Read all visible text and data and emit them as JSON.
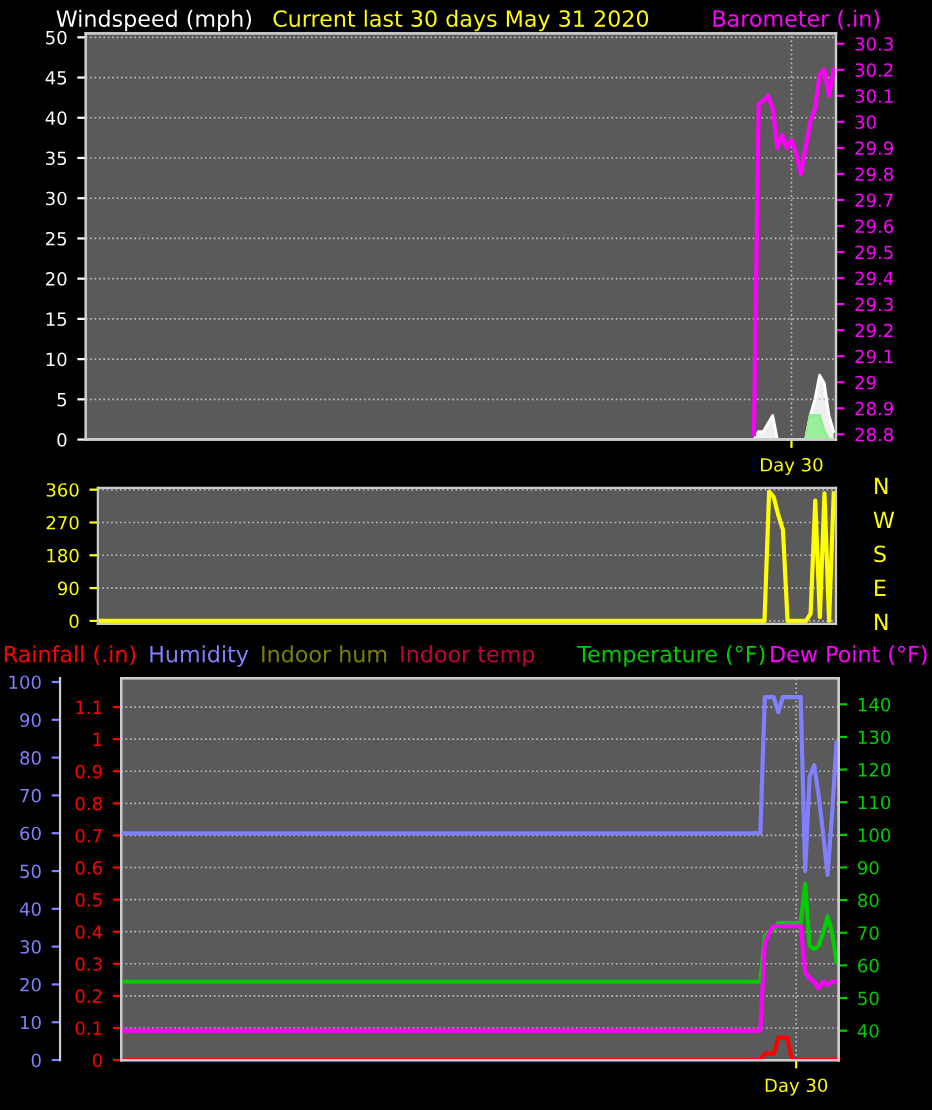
{
  "chart_data": [
    {
      "type": "line",
      "title": "Current last 30 days May 31 2020",
      "ylabel": "Windspeed (mph)",
      "y2label": "Barometer (.in)",
      "categories": [
        null,
        null,
        null,
        null,
        null,
        null,
        null,
        null,
        null,
        null,
        null,
        null,
        null,
        null,
        null,
        null,
        null,
        null,
        null,
        null,
        null,
        null,
        null,
        null,
        null,
        null,
        null,
        null,
        null,
        null,
        null,
        null,
        null,
        null,
        null,
        null,
        null,
        null,
        null,
        null,
        null,
        null,
        null,
        null,
        null,
        null,
        null,
        null,
        null,
        null,
        null,
        null,
        null,
        null,
        null,
        null,
        null,
        null,
        null,
        null,
        null,
        null,
        null,
        null,
        null,
        null,
        null,
        null,
        null,
        null,
        null,
        null,
        null,
        null,
        null,
        null,
        null,
        null,
        null,
        null,
        null,
        null,
        null,
        null,
        null,
        null,
        null,
        null,
        null,
        null,
        null,
        null,
        null,
        null,
        null,
        null,
        null,
        null,
        null,
        null,
        null,
        null,
        null,
        null,
        null,
        null,
        null,
        null,
        null,
        null,
        null,
        null,
        null,
        null,
        null,
        null,
        null,
        null,
        null,
        null,
        null,
        null,
        null,
        null,
        null,
        null,
        null,
        null,
        null,
        null,
        null,
        null,
        null,
        null,
        null,
        null,
        null,
        null,
        null,
        null,
        null,
        null,
        null,
        null,
        null,
        null,
        null,
        null,
        null,
        null,
        "Day 30",
        null,
        null,
        null,
        null,
        null,
        null,
        null,
        null,
        null
      ],
      "ylim": [
        0,
        50.5
      ],
      "yticks": [
        0,
        5,
        10,
        15,
        20,
        25,
        30,
        35,
        40,
        45,
        50
      ],
      "y2lim": [
        28.78,
        30.34
      ],
      "y2ticks": [
        28.8,
        28.9,
        29,
        29.1,
        29.2,
        29.3,
        29.4,
        29.5,
        29.6,
        29.7,
        29.8,
        29.9,
        30,
        30.1,
        30.2,
        30.3
      ],
      "grid": true,
      "series": [
        {
          "type": "area",
          "color": "#ffffff",
          "values": [
            0,
            0,
            0,
            0,
            0,
            0,
            0,
            0,
            0,
            0,
            0,
            0,
            0,
            0,
            0,
            0,
            0,
            0,
            0,
            0,
            0,
            0,
            0,
            0,
            0,
            0,
            0,
            0,
            0,
            0,
            0,
            0,
            0,
            0,
            0,
            0,
            0,
            0,
            0,
            0,
            0,
            0,
            0,
            0,
            0,
            0,
            0,
            0,
            0,
            0,
            0,
            0,
            0,
            0,
            0,
            0,
            0,
            0,
            0,
            0,
            0,
            0,
            0,
            0,
            0,
            0,
            0,
            0,
            0,
            0,
            0,
            0,
            0,
            0,
            0,
            0,
            0,
            0,
            0,
            0,
            0,
            0,
            0,
            0,
            0,
            0,
            0,
            0,
            0,
            0,
            0,
            0,
            0,
            0,
            0,
            0,
            0,
            0,
            0,
            0,
            0,
            0,
            0,
            0,
            0,
            0,
            0,
            0,
            0,
            0,
            0,
            0,
            0,
            0,
            0,
            0,
            0,
            0,
            0,
            0,
            0,
            0,
            0,
            0,
            0,
            0,
            0,
            0,
            0,
            0,
            0,
            0,
            0,
            0,
            0,
            0,
            0,
            0,
            0,
            0,
            0,
            0,
            0,
            1,
            1,
            2,
            3,
            0,
            0,
            0,
            0,
            0,
            0,
            0,
            3,
            5,
            8,
            7,
            3,
            1
          ]
        },
        {
          "type": "area",
          "color": "#90ee90",
          "values": [
            0,
            0,
            0,
            0,
            0,
            0,
            0,
            0,
            0,
            0,
            0,
            0,
            0,
            0,
            0,
            0,
            0,
            0,
            0,
            0,
            0,
            0,
            0,
            0,
            0,
            0,
            0,
            0,
            0,
            0,
            0,
            0,
            0,
            0,
            0,
            0,
            0,
            0,
            0,
            0,
            0,
            0,
            0,
            0,
            0,
            0,
            0,
            0,
            0,
            0,
            0,
            0,
            0,
            0,
            0,
            0,
            0,
            0,
            0,
            0,
            0,
            0,
            0,
            0,
            0,
            0,
            0,
            0,
            0,
            0,
            0,
            0,
            0,
            0,
            0,
            0,
            0,
            0,
            0,
            0,
            0,
            0,
            0,
            0,
            0,
            0,
            0,
            0,
            0,
            0,
            0,
            0,
            0,
            0,
            0,
            0,
            0,
            0,
            0,
            0,
            0,
            0,
            0,
            0,
            0,
            0,
            0,
            0,
            0,
            0,
            0,
            0,
            0,
            0,
            0,
            0,
            0,
            0,
            0,
            0,
            0,
            0,
            0,
            0,
            0,
            0,
            0,
            0,
            0,
            0,
            0,
            0,
            0,
            0,
            0,
            0,
            0,
            0,
            0,
            0,
            0,
            0,
            0,
            0,
            0,
            0,
            0,
            0,
            0,
            0,
            0,
            0,
            0,
            0,
            3,
            3,
            3,
            1,
            0,
            0
          ]
        },
        {
          "axis": "y2",
          "color": "#ff00ff",
          "values": [
            null,
            null,
            null,
            null,
            null,
            null,
            null,
            null,
            null,
            null,
            null,
            null,
            null,
            null,
            null,
            null,
            null,
            null,
            null,
            null,
            null,
            null,
            null,
            null,
            null,
            null,
            null,
            null,
            null,
            null,
            null,
            null,
            null,
            null,
            null,
            null,
            null,
            null,
            null,
            null,
            null,
            null,
            null,
            null,
            null,
            null,
            null,
            null,
            null,
            null,
            null,
            null,
            null,
            null,
            null,
            null,
            null,
            null,
            null,
            null,
            null,
            null,
            null,
            null,
            null,
            null,
            null,
            null,
            null,
            null,
            null,
            null,
            null,
            null,
            null,
            null,
            null,
            null,
            null,
            null,
            null,
            null,
            null,
            null,
            null,
            null,
            null,
            null,
            null,
            null,
            null,
            null,
            null,
            null,
            null,
            null,
            null,
            null,
            null,
            null,
            null,
            null,
            null,
            null,
            null,
            null,
            null,
            null,
            null,
            null,
            null,
            null,
            null,
            null,
            null,
            null,
            null,
            null,
            null,
            null,
            null,
            null,
            null,
            null,
            null,
            null,
            null,
            null,
            null,
            null,
            null,
            null,
            null,
            null,
            null,
            null,
            null,
            null,
            null,
            null,
            null,
            null,
            28.8,
            30.07,
            30.08,
            30.1,
            30.05,
            29.9,
            29.95,
            29.9,
            29.93,
            29.88,
            29.8,
            29.9,
            30.0,
            30.05,
            30.18,
            30.2,
            30.1,
            30.2
          ]
        }
      ]
    },
    {
      "type": "line",
      "categories": [
        null,
        null,
        null,
        null,
        null,
        null,
        null,
        null,
        null,
        null,
        null,
        null,
        null,
        null,
        null,
        null,
        null,
        null,
        null,
        null,
        null,
        null,
        null,
        null,
        null,
        null,
        null,
        null,
        null,
        null,
        null,
        null,
        null,
        null,
        null,
        null,
        null,
        null,
        null,
        null,
        null,
        null,
        null,
        null,
        null,
        null,
        null,
        null,
        null,
        null,
        null,
        null,
        null,
        null,
        null,
        null,
        null,
        null,
        null,
        null,
        null,
        null,
        null,
        null,
        null,
        null,
        null,
        null,
        null,
        null,
        null,
        null,
        null,
        null,
        null,
        null,
        null,
        null,
        null,
        null,
        null,
        null,
        null,
        null,
        null,
        null,
        null,
        null,
        null,
        null,
        null,
        null,
        null,
        null,
        null,
        null,
        null,
        null,
        null,
        null,
        null,
        null,
        null,
        null,
        null,
        null,
        null,
        null,
        null,
        null,
        null,
        null,
        null,
        null,
        null,
        null,
        null,
        null,
        null,
        null,
        null,
        null,
        null,
        null,
        null,
        null,
        null,
        null,
        null,
        null,
        null,
        null,
        null,
        null,
        null,
        null,
        null,
        null,
        null,
        null,
        null,
        null,
        null,
        null,
        null,
        null,
        null,
        null,
        null,
        null,
        null,
        null,
        null,
        null,
        null,
        null,
        null,
        null,
        null,
        null
      ],
      "ylim": [
        -8,
        365
      ],
      "yticks": [
        0,
        90,
        180,
        270,
        360
      ],
      "annotations": [
        "N",
        "W",
        "S",
        "E",
        "N"
      ],
      "grid": "y",
      "series": [
        {
          "color": "#ffff00",
          "values": [
            0,
            0,
            0,
            0,
            0,
            0,
            0,
            0,
            0,
            0,
            0,
            0,
            0,
            0,
            0,
            0,
            0,
            0,
            0,
            0,
            0,
            0,
            0,
            0,
            0,
            0,
            0,
            0,
            0,
            0,
            0,
            0,
            0,
            0,
            0,
            0,
            0,
            0,
            0,
            0,
            0,
            0,
            0,
            0,
            0,
            0,
            0,
            0,
            0,
            0,
            0,
            0,
            0,
            0,
            0,
            0,
            0,
            0,
            0,
            0,
            0,
            0,
            0,
            0,
            0,
            0,
            0,
            0,
            0,
            0,
            0,
            0,
            0,
            0,
            0,
            0,
            0,
            0,
            0,
            0,
            0,
            0,
            0,
            0,
            0,
            0,
            0,
            0,
            0,
            0,
            0,
            0,
            0,
            0,
            0,
            0,
            0,
            0,
            0,
            0,
            0,
            0,
            0,
            0,
            0,
            0,
            0,
            0,
            0,
            0,
            0,
            0,
            0,
            0,
            0,
            0,
            0,
            0,
            0,
            0,
            0,
            0,
            0,
            0,
            0,
            0,
            0,
            0,
            0,
            0,
            0,
            0,
            0,
            0,
            0,
            0,
            0,
            0,
            0,
            0,
            0,
            0,
            0,
            0,
            0,
            355,
            340,
            290,
            250,
            0,
            0,
            0,
            0,
            0,
            20,
            330,
            10,
            350,
            0,
            350
          ]
        }
      ]
    },
    {
      "type": "line",
      "legend": "top",
      "categories": [
        null,
        null,
        null,
        null,
        null,
        null,
        null,
        null,
        null,
        null,
        null,
        null,
        null,
        null,
        null,
        null,
        null,
        null,
        null,
        null,
        null,
        null,
        null,
        null,
        null,
        null,
        null,
        null,
        null,
        null,
        null,
        null,
        null,
        null,
        null,
        null,
        null,
        null,
        null,
        null,
        null,
        null,
        null,
        null,
        null,
        null,
        null,
        null,
        null,
        null,
        null,
        null,
        null,
        null,
        null,
        null,
        null,
        null,
        null,
        null,
        null,
        null,
        null,
        null,
        null,
        null,
        null,
        null,
        null,
        null,
        null,
        null,
        null,
        null,
        null,
        null,
        null,
        null,
        null,
        null,
        null,
        null,
        null,
        null,
        null,
        null,
        null,
        null,
        null,
        null,
        null,
        null,
        null,
        null,
        null,
        null,
        null,
        null,
        null,
        null,
        null,
        null,
        null,
        null,
        null,
        null,
        null,
        null,
        null,
        null,
        null,
        null,
        null,
        null,
        null,
        null,
        null,
        null,
        null,
        null,
        null,
        null,
        null,
        null,
        null,
        null,
        null,
        null,
        null,
        null,
        null,
        null,
        null,
        null,
        null,
        null,
        null,
        null,
        null,
        null,
        null,
        null,
        null,
        null,
        null,
        null,
        null,
        null,
        null,
        null,
        "Day 30",
        null,
        null,
        null,
        null,
        null,
        null,
        null,
        null,
        null
      ],
      "ylim": [
        0,
        1.19
      ],
      "yticks": [
        0,
        0.1,
        0.2,
        0.3,
        0.4,
        0.5,
        0.6,
        0.7,
        0.8,
        0.9,
        1,
        1.1
      ],
      "y2lim": [
        31,
        148
      ],
      "y2ticks": [
        40,
        50,
        60,
        70,
        80,
        90,
        100,
        110,
        120,
        130,
        140
      ],
      "y3lim": [
        0,
        101
      ],
      "y3ticks": [
        0,
        10,
        20,
        30,
        40,
        50,
        60,
        70,
        80,
        90,
        100
      ],
      "grid": true,
      "series": [
        {
          "name": "Rainfall (.in)",
          "axis": "y",
          "color": "#ff0000",
          "values": [
            0,
            0,
            0,
            0,
            0,
            0,
            0,
            0,
            0,
            0,
            0,
            0,
            0,
            0,
            0,
            0,
            0,
            0,
            0,
            0,
            0,
            0,
            0,
            0,
            0,
            0,
            0,
            0,
            0,
            0,
            0,
            0,
            0,
            0,
            0,
            0,
            0,
            0,
            0,
            0,
            0,
            0,
            0,
            0,
            0,
            0,
            0,
            0,
            0,
            0,
            0,
            0,
            0,
            0,
            0,
            0,
            0,
            0,
            0,
            0,
            0,
            0,
            0,
            0,
            0,
            0,
            0,
            0,
            0,
            0,
            0,
            0,
            0,
            0,
            0,
            0,
            0,
            0,
            0,
            0,
            0,
            0,
            0,
            0,
            0,
            0,
            0,
            0,
            0,
            0,
            0,
            0,
            0,
            0,
            0,
            0,
            0,
            0,
            0,
            0,
            0,
            0,
            0,
            0,
            0,
            0,
            0,
            0,
            0,
            0,
            0,
            0,
            0,
            0,
            0,
            0,
            0,
            0,
            0,
            0,
            0,
            0,
            0,
            0,
            0,
            0,
            0,
            0,
            0,
            0,
            0,
            0,
            0,
            0,
            0,
            0,
            0,
            0,
            0,
            0,
            0,
            0,
            0,
            0.02,
            0.02,
            0.02,
            0.07,
            0.07,
            0.07,
            0,
            0,
            0,
            0,
            0,
            0,
            0,
            0,
            0,
            0,
            0
          ]
        },
        {
          "name": "Humidity",
          "axis": "y3",
          "color": "#8080ff",
          "values": [
            60,
            60,
            60,
            60,
            60,
            60,
            60,
            60,
            60,
            60,
            60,
            60,
            60,
            60,
            60,
            60,
            60,
            60,
            60,
            60,
            60,
            60,
            60,
            60,
            60,
            60,
            60,
            60,
            60,
            60,
            60,
            60,
            60,
            60,
            60,
            60,
            60,
            60,
            60,
            60,
            60,
            60,
            60,
            60,
            60,
            60,
            60,
            60,
            60,
            60,
            60,
            60,
            60,
            60,
            60,
            60,
            60,
            60,
            60,
            60,
            60,
            60,
            60,
            60,
            60,
            60,
            60,
            60,
            60,
            60,
            60,
            60,
            60,
            60,
            60,
            60,
            60,
            60,
            60,
            60,
            60,
            60,
            60,
            60,
            60,
            60,
            60,
            60,
            60,
            60,
            60,
            60,
            60,
            60,
            60,
            60,
            60,
            60,
            60,
            60,
            60,
            60,
            60,
            60,
            60,
            60,
            60,
            60,
            60,
            60,
            60,
            60,
            60,
            60,
            60,
            60,
            60,
            60,
            60,
            60,
            60,
            60,
            60,
            60,
            60,
            60,
            60,
            60,
            60,
            60,
            60,
            60,
            60,
            60,
            60,
            60,
            60,
            60,
            60,
            60,
            60,
            60,
            60,
            96,
            96,
            96,
            92,
            96,
            96,
            96,
            96,
            96,
            50,
            75,
            78,
            70,
            60,
            49,
            65,
            84
          ]
        },
        {
          "name": "Indoor hum",
          "axis": "y3",
          "color": "#808000",
          "values": [
            null,
            null,
            null,
            null,
            null,
            null,
            null,
            null,
            null,
            null,
            null,
            null,
            null,
            null,
            null,
            null,
            null,
            null,
            null,
            null,
            null,
            null,
            null,
            null,
            null,
            null,
            null,
            null,
            null,
            null,
            null,
            null,
            null,
            null,
            null,
            null,
            null,
            null,
            null,
            null,
            null,
            null,
            null,
            null,
            null,
            null,
            null,
            null,
            null,
            null,
            null,
            null,
            null,
            null,
            null,
            null,
            null,
            null,
            null,
            null,
            null,
            null,
            null,
            null,
            null,
            null,
            null,
            null,
            null,
            null,
            null,
            null,
            null,
            null,
            null,
            null,
            null,
            null,
            null,
            null,
            null,
            null,
            null,
            null,
            null,
            null,
            null,
            null,
            null,
            null,
            null,
            null,
            null,
            null,
            null,
            null,
            null,
            null,
            null,
            null,
            null,
            null,
            null,
            null,
            null,
            null,
            null,
            null,
            null,
            null,
            null,
            null,
            null,
            null,
            null,
            null,
            null,
            null,
            null,
            null,
            null,
            null,
            null,
            null,
            null,
            null,
            null,
            null,
            null,
            null,
            null,
            null,
            null,
            null,
            null,
            null,
            null,
            null,
            null,
            null,
            null,
            null,
            null,
            null,
            null,
            null,
            null,
            null,
            null,
            null,
            null,
            null,
            null,
            null,
            null,
            null,
            null,
            null,
            null,
            null
          ]
        },
        {
          "name": "Indoor temp",
          "axis": "y",
          "color": "#c00040",
          "values": [
            null,
            null,
            null,
            null,
            null,
            null,
            null,
            null,
            null,
            null,
            null,
            null,
            null,
            null,
            null,
            null,
            null,
            null,
            null,
            null,
            null,
            null,
            null,
            null,
            null,
            null,
            null,
            null,
            null,
            null,
            null,
            null,
            null,
            null,
            null,
            null,
            null,
            null,
            null,
            null,
            null,
            null,
            null,
            null,
            null,
            null,
            null,
            null,
            null,
            null,
            null,
            null,
            null,
            null,
            null,
            null,
            null,
            null,
            null,
            null,
            null,
            null,
            null,
            null,
            null,
            null,
            null,
            null,
            null,
            null,
            null,
            null,
            null,
            null,
            null,
            null,
            null,
            null,
            null,
            null,
            null,
            null,
            null,
            null,
            null,
            null,
            null,
            null,
            null,
            null,
            null,
            null,
            null,
            null,
            null,
            null,
            null,
            null,
            null,
            null,
            null,
            null,
            null,
            null,
            null,
            null,
            null,
            null,
            null,
            null,
            null,
            null,
            null,
            null,
            null,
            null,
            null,
            null,
            null,
            null,
            null,
            null,
            null,
            null,
            null,
            null,
            null,
            null,
            null,
            null,
            null,
            null,
            null,
            null,
            null,
            null,
            null,
            null,
            null,
            null,
            null,
            null,
            null,
            null,
            null,
            null,
            null,
            null,
            null,
            null,
            null,
            null,
            null,
            null,
            null,
            null,
            null,
            null,
            null,
            null
          ]
        },
        {
          "name": "Temperature (°F)",
          "axis": "y2",
          "color": "#00cc00",
          "values": [
            55,
            55,
            55,
            55,
            55,
            55,
            55,
            55,
            55,
            55,
            55,
            55,
            55,
            55,
            55,
            55,
            55,
            55,
            55,
            55,
            55,
            55,
            55,
            55,
            55,
            55,
            55,
            55,
            55,
            55,
            55,
            55,
            55,
            55,
            55,
            55,
            55,
            55,
            55,
            55,
            55,
            55,
            55,
            55,
            55,
            55,
            55,
            55,
            55,
            55,
            55,
            55,
            55,
            55,
            55,
            55,
            55,
            55,
            55,
            55,
            55,
            55,
            55,
            55,
            55,
            55,
            55,
            55,
            55,
            55,
            55,
            55,
            55,
            55,
            55,
            55,
            55,
            55,
            55,
            55,
            55,
            55,
            55,
            55,
            55,
            55,
            55,
            55,
            55,
            55,
            55,
            55,
            55,
            55,
            55,
            55,
            55,
            55,
            55,
            55,
            55,
            55,
            55,
            55,
            55,
            55,
            55,
            55,
            55,
            55,
            55,
            55,
            55,
            55,
            55,
            55,
            55,
            55,
            55,
            55,
            55,
            55,
            55,
            55,
            55,
            55,
            55,
            55,
            55,
            55,
            55,
            55,
            55,
            55,
            55,
            55,
            55,
            55,
            55,
            55,
            55,
            55,
            55,
            69,
            70,
            71,
            73,
            73,
            73,
            73,
            73,
            73,
            85,
            66,
            65,
            66,
            70,
            75,
            70,
            61
          ]
        },
        {
          "name": "Dew Point (°F)",
          "axis": "y2",
          "color": "#ff00ff",
          "values": [
            40,
            40,
            40,
            40,
            40,
            40,
            40,
            40,
            40,
            40,
            40,
            40,
            40,
            40,
            40,
            40,
            40,
            40,
            40,
            40,
            40,
            40,
            40,
            40,
            40,
            40,
            40,
            40,
            40,
            40,
            40,
            40,
            40,
            40,
            40,
            40,
            40,
            40,
            40,
            40,
            40,
            40,
            40,
            40,
            40,
            40,
            40,
            40,
            40,
            40,
            40,
            40,
            40,
            40,
            40,
            40,
            40,
            40,
            40,
            40,
            40,
            40,
            40,
            40,
            40,
            40,
            40,
            40,
            40,
            40,
            40,
            40,
            40,
            40,
            40,
            40,
            40,
            40,
            40,
            40,
            40,
            40,
            40,
            40,
            40,
            40,
            40,
            40,
            40,
            40,
            40,
            40,
            40,
            40,
            40,
            40,
            40,
            40,
            40,
            40,
            40,
            40,
            40,
            40,
            40,
            40,
            40,
            40,
            40,
            40,
            40,
            40,
            40,
            40,
            40,
            40,
            40,
            40,
            40,
            40,
            40,
            40,
            40,
            40,
            40,
            40,
            40,
            40,
            40,
            40,
            40,
            40,
            40,
            40,
            40,
            40,
            40,
            40,
            40,
            40,
            40,
            40,
            40,
            67,
            70,
            72,
            72,
            72,
            72,
            72,
            72,
            72,
            58,
            56,
            55,
            53,
            55,
            54,
            55,
            55
          ]
        }
      ]
    }
  ]
}
